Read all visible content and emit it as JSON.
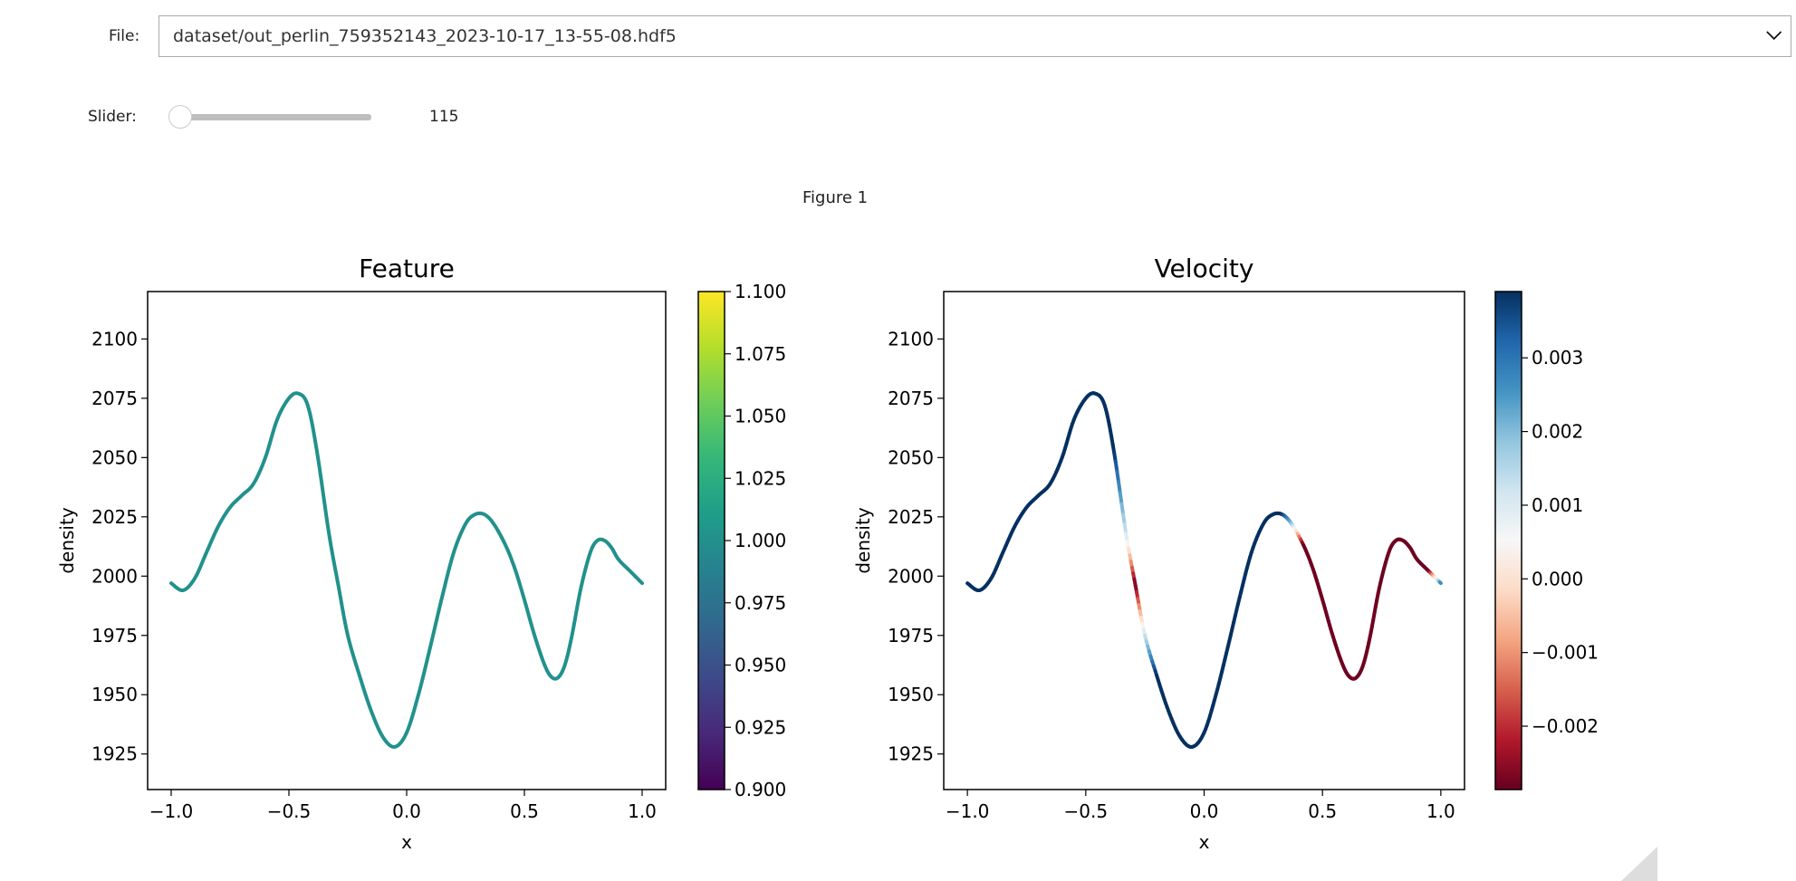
{
  "controls": {
    "file_label": "File:",
    "file_value": "dataset/out_perlin_759352143_2023-10-17_13-55-08.hdf5",
    "slider_label": "Slider:",
    "slider_value": "115",
    "slider_fraction": 0.0
  },
  "figure_title": "Figure 1",
  "chart_data": [
    {
      "type": "line",
      "title": "Feature",
      "xlabel": "x",
      "ylabel": "density",
      "xlim": [
        -1.1,
        1.1
      ],
      "ylim": [
        1910,
        2120
      ],
      "xticks": [
        -1.0,
        -0.5,
        0.0,
        0.5,
        1.0
      ],
      "xtick_labels": [
        "−1.0",
        "−0.5",
        "0.0",
        "0.5",
        "1.0"
      ],
      "yticks": [
        1925,
        1950,
        1975,
        2000,
        2025,
        2050,
        2075,
        2100
      ],
      "ytick_labels": [
        "1925",
        "1950",
        "1975",
        "2000",
        "2025",
        "2050",
        "2075",
        "2100"
      ],
      "line_color": "#21918c",
      "colorbar": {
        "cmap": "viridis",
        "range": [
          0.9,
          1.1
        ],
        "ticks": [
          0.9,
          0.925,
          0.95,
          0.975,
          1.0,
          1.025,
          1.05,
          1.075,
          1.1
        ],
        "tick_labels": [
          "0.900",
          "0.925",
          "0.950",
          "0.975",
          "1.000",
          "1.025",
          "1.050",
          "1.075",
          "1.100"
        ]
      },
      "x": [
        -1.0,
        -0.95,
        -0.9,
        -0.85,
        -0.8,
        -0.75,
        -0.7,
        -0.65,
        -0.6,
        -0.55,
        -0.5,
        -0.46,
        -0.42,
        -0.38,
        -0.33,
        -0.29,
        -0.25,
        -0.2,
        -0.15,
        -0.1,
        -0.05,
        0.0,
        0.05,
        0.1,
        0.15,
        0.2,
        0.25,
        0.29,
        0.33,
        0.37,
        0.42,
        0.46,
        0.5,
        0.54,
        0.58,
        0.61,
        0.64,
        0.67,
        0.7,
        0.74,
        0.78,
        0.81,
        0.84,
        0.87,
        0.9,
        0.95,
        1.0
      ],
      "y": [
        1997,
        1994,
        1999,
        2010,
        2021,
        2029,
        2034,
        2039,
        2050,
        2066,
        2075,
        2077,
        2072,
        2052,
        2018,
        1996,
        1975,
        1958,
        1943,
        1932,
        1928,
        1934,
        1950,
        1970,
        1991,
        2010,
        2022,
        2026,
        2026,
        2022,
        2013,
        2003,
        1990,
        1976,
        1964,
        1958,
        1957,
        1962,
        1974,
        1995,
        2010,
        2015,
        2015,
        2012,
        2007,
        2002,
        1997
      ]
    },
    {
      "type": "line",
      "title": "Velocity",
      "xlabel": "x",
      "ylabel": "density",
      "xlim": [
        -1.1,
        1.1
      ],
      "ylim": [
        1910,
        2120
      ],
      "xticks": [
        -1.0,
        -0.5,
        0.0,
        0.5,
        1.0
      ],
      "xtick_labels": [
        "−1.0",
        "−0.5",
        "0.0",
        "0.5",
        "1.0"
      ],
      "yticks": [
        1925,
        1950,
        1975,
        2000,
        2025,
        2050,
        2075,
        2100
      ],
      "ytick_labels": [
        "1925",
        "1950",
        "1975",
        "2000",
        "2025",
        "2050",
        "2075",
        "2100"
      ],
      "colorbar": {
        "cmap": "RdBu",
        "range": [
          -0.00286,
          0.0039
        ],
        "ticks": [
          -0.002,
          -0.001,
          0.0,
          0.001,
          0.002,
          0.003
        ],
        "tick_labels": [
          "−0.002",
          "−0.001",
          "0.000",
          "0.001",
          "0.002",
          "0.003"
        ]
      },
      "x": [
        -1.0,
        -0.95,
        -0.9,
        -0.85,
        -0.8,
        -0.75,
        -0.7,
        -0.65,
        -0.6,
        -0.55,
        -0.5,
        -0.46,
        -0.42,
        -0.38,
        -0.33,
        -0.29,
        -0.25,
        -0.2,
        -0.15,
        -0.1,
        -0.05,
        0.0,
        0.05,
        0.1,
        0.15,
        0.2,
        0.25,
        0.29,
        0.33,
        0.37,
        0.42,
        0.46,
        0.5,
        0.54,
        0.58,
        0.61,
        0.64,
        0.67,
        0.7,
        0.74,
        0.78,
        0.81,
        0.84,
        0.87,
        0.9,
        0.95,
        1.0
      ],
      "y": [
        1997,
        1994,
        1999,
        2010,
        2021,
        2029,
        2034,
        2039,
        2050,
        2066,
        2075,
        2077,
        2072,
        2052,
        2018,
        1996,
        1975,
        1958,
        1943,
        1932,
        1928,
        1934,
        1950,
        1970,
        1991,
        2010,
        2022,
        2026,
        2026,
        2022,
        2013,
        2003,
        1990,
        1976,
        1964,
        1958,
        1957,
        1962,
        1974,
        1995,
        2010,
        2015,
        2015,
        2012,
        2007,
        2002,
        1997
      ],
      "velocity": [
        0.0039,
        0.0039,
        0.0039,
        0.0039,
        0.0039,
        0.0039,
        0.0039,
        0.0039,
        0.0039,
        0.0039,
        0.0039,
        0.0039,
        0.0039,
        0.0039,
        0.0012,
        -0.0028,
        0.0012,
        0.0039,
        0.0039,
        0.0039,
        0.0039,
        0.0039,
        0.0039,
        0.0039,
        0.0039,
        0.0039,
        0.0039,
        0.0039,
        0.0039,
        0.002,
        -0.0028,
        -0.0028,
        -0.0028,
        -0.0028,
        -0.0028,
        -0.0028,
        -0.0028,
        -0.0028,
        -0.0028,
        -0.0028,
        -0.0028,
        -0.0028,
        -0.0028,
        -0.0028,
        -0.0028,
        -0.0028,
        0.003
      ]
    }
  ]
}
